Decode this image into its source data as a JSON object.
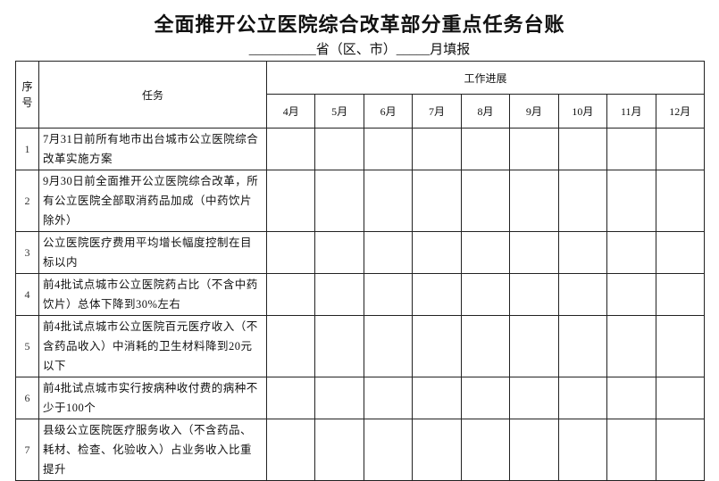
{
  "title": "全面推开公立医院综合改革部分重点任务台账",
  "subtitle": "__________省（区、市）_____月填报",
  "headers": {
    "index": "序号",
    "task": "任务",
    "progress": "工作进展",
    "months": [
      "4月",
      "5月",
      "6月",
      "7月",
      "8月",
      "9月",
      "10月",
      "11月",
      "12月"
    ]
  },
  "rows": [
    {
      "index": "1",
      "task": "7月31日前所有地市出台城市公立医院综合改革实施方案"
    },
    {
      "index": "2",
      "task": "9月30日前全面推开公立医院综合改革，所有公立医院全部取消药品加成（中药饮片除外）"
    },
    {
      "index": "3",
      "task": "公立医院医疗费用平均增长幅度控制在目标以内"
    },
    {
      "index": "4",
      "task": "前4批试点城市公立医院药占比（不含中药饮片）总体下降到30%左右"
    },
    {
      "index": "5",
      "task": "前4批试点城市公立医院百元医疗收入（不含药品收入）中消耗的卫生材料降到20元以下"
    },
    {
      "index": "6",
      "task": "前4批试点城市实行按病种收付费的病种不少于100个"
    },
    {
      "index": "7",
      "task": "县级公立医院医疗服务收入（不含药品、耗材、检查、化验收入）占业务收入比重提升"
    }
  ]
}
